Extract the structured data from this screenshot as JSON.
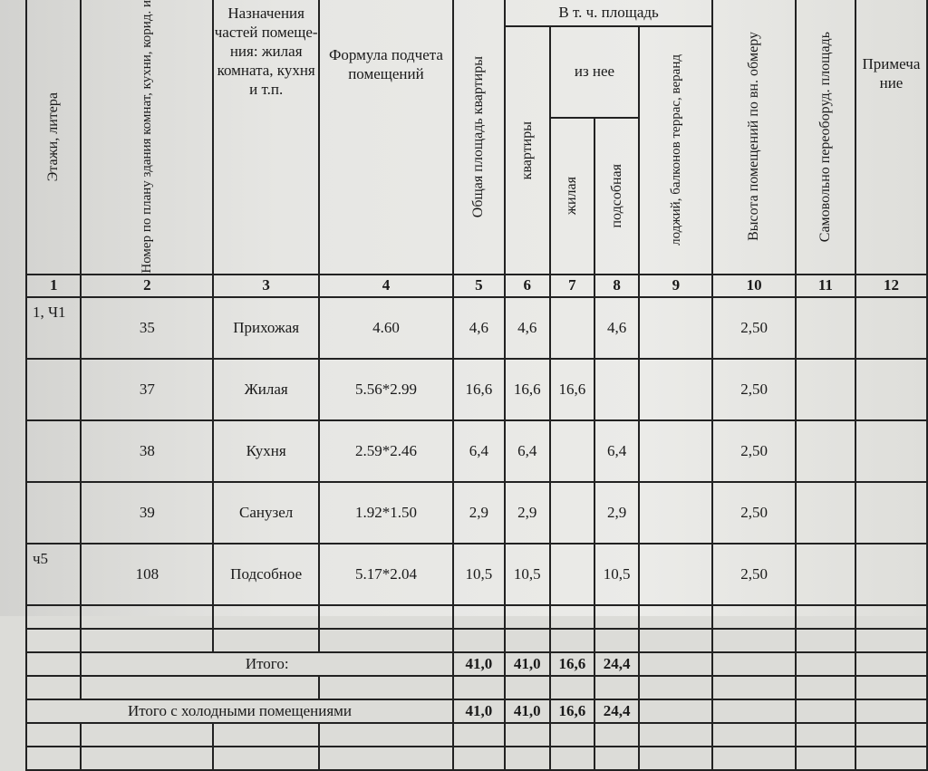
{
  "headers": {
    "c1": "Этажи, литера",
    "c2": "Номер по плану здания комнат, кухни, корид. и",
    "c3": "Назначения частей помеще-ния: жилая комната, кухня и т.п.",
    "c4": "Формула подчета помещений",
    "c5": "Общая площадь квартиры",
    "group": "В т. ч. площадь",
    "c6": "квартиры",
    "subgroup": "из нее",
    "c7": "жилая",
    "c8": "подсобная",
    "c9": "лоджий, балконов террас, веранд",
    "c10": "Высота помещений по вн. обмеру",
    "c11": "Самовольно переоборуд. площадь",
    "c12": "Примеча ние"
  },
  "column_numbers": [
    "1",
    "2",
    "3",
    "4",
    "5",
    "6",
    "7",
    "8",
    "9",
    "10",
    "11",
    "12"
  ],
  "rows": [
    {
      "floor": "1, Ч1",
      "no": "35",
      "name": "Прихожая",
      "formula": "4.60",
      "total": "4,6",
      "apt": "4,6",
      "living": "",
      "aux": "4,6",
      "loggia": "",
      "height": "2,50",
      "self": "",
      "note": ""
    },
    {
      "floor": "",
      "no": "37",
      "name": "Жилая",
      "formula": "5.56*2.99",
      "total": "16,6",
      "apt": "16,6",
      "living": "16,6",
      "aux": "",
      "loggia": "",
      "height": "2,50",
      "self": "",
      "note": ""
    },
    {
      "floor": "",
      "no": "38",
      "name": "Кухня",
      "formula": "2.59*2.46",
      "total": "6,4",
      "apt": "6,4",
      "living": "",
      "aux": "6,4",
      "loggia": "",
      "height": "2,50",
      "self": "",
      "note": ""
    },
    {
      "floor": "",
      "no": "39",
      "name": "Санузел",
      "formula": "1.92*1.50",
      "total": "2,9",
      "apt": "2,9",
      "living": "",
      "aux": "2,9",
      "loggia": "",
      "height": "2,50",
      "self": "",
      "note": ""
    },
    {
      "floor": "ч5",
      "no": "108",
      "name": "Подсобное",
      "formula": "5.17*2.04",
      "total": "10,5",
      "apt": "10,5",
      "living": "",
      "aux": "10,5",
      "loggia": "",
      "height": "2,50",
      "self": "",
      "note": ""
    }
  ],
  "total": {
    "label": "Итого:",
    "total": "41,0",
    "apt": "41,0",
    "living": "16,6",
    "aux": "24,4"
  },
  "total_cold": {
    "label": "Итого с холодными помещениями",
    "total": "41,0",
    "apt": "41,0",
    "living": "16,6",
    "aux": "24,4"
  }
}
